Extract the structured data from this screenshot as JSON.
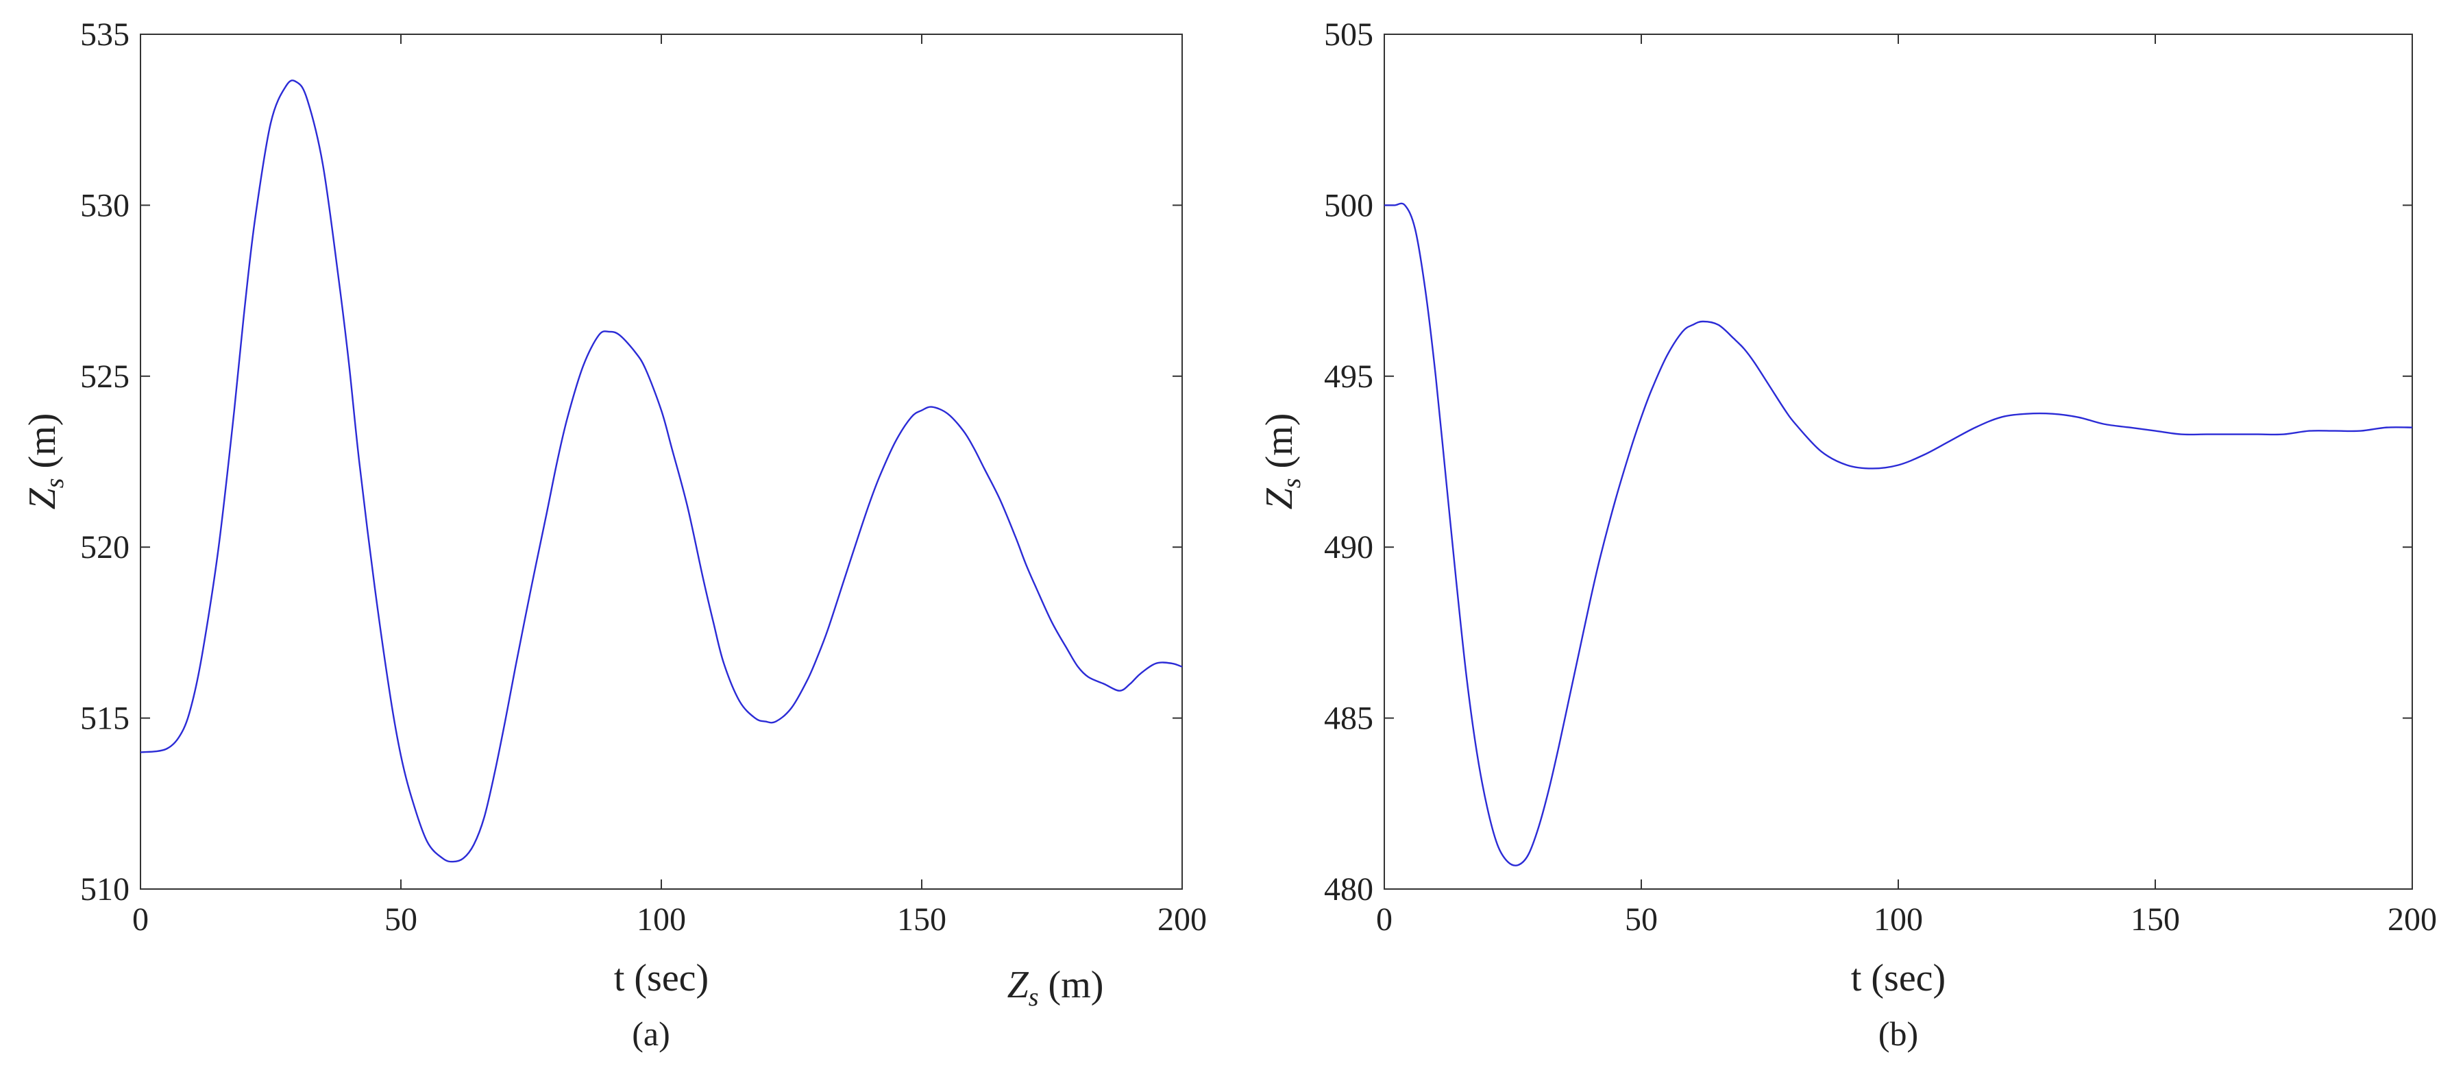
{
  "chart_data": [
    {
      "type": "line",
      "caption": "(a)",
      "xlabel": "t (sec)",
      "ylabel": "Z_s (m)",
      "stray_label": "Z_s (m)",
      "xlim": [
        0,
        200
      ],
      "ylim": [
        510,
        535
      ],
      "xticks": [
        0,
        50,
        100,
        150,
        200
      ],
      "yticks": [
        510,
        515,
        520,
        525,
        530,
        535
      ],
      "grid": false,
      "series": [
        {
          "color": "#2b2bd6",
          "x": [
            0,
            5,
            8,
            10,
            12,
            15,
            18,
            20,
            22,
            25,
            28,
            30,
            32,
            35,
            38,
            40,
            42,
            45,
            48,
            50,
            52,
            55,
            58,
            60,
            62,
            64,
            66,
            68,
            70,
            72,
            75,
            78,
            80,
            82,
            85,
            88,
            90,
            92,
            95,
            97,
            100,
            102,
            105,
            108,
            110,
            112,
            115,
            118,
            120,
            122,
            125,
            128,
            130,
            132,
            135,
            138,
            140,
            142,
            145,
            148,
            150,
            152,
            155,
            158,
            160,
            162,
            165,
            168,
            170,
            172,
            175,
            178,
            180,
            182,
            185,
            188,
            190,
            192,
            195,
            198,
            200
          ],
          "y": [
            514.0,
            514.1,
            514.6,
            515.5,
            517.0,
            520.0,
            524.0,
            527.0,
            529.6,
            532.4,
            533.5,
            533.6,
            533.1,
            531.2,
            527.9,
            525.4,
            522.5,
            518.8,
            515.6,
            513.9,
            512.7,
            511.4,
            510.9,
            510.8,
            510.9,
            511.3,
            512.1,
            513.4,
            514.9,
            516.5,
            518.8,
            521.0,
            522.5,
            523.8,
            525.3,
            526.2,
            526.3,
            526.2,
            525.7,
            525.2,
            524.0,
            522.9,
            521.2,
            519.1,
            517.8,
            516.6,
            515.5,
            515.0,
            514.9,
            514.9,
            515.3,
            516.1,
            516.8,
            517.6,
            519.0,
            520.4,
            521.3,
            522.1,
            523.1,
            523.8,
            524.0,
            524.1,
            523.9,
            523.4,
            522.9,
            522.3,
            521.4,
            520.3,
            519.5,
            518.8,
            517.8,
            517.0,
            516.5,
            516.2,
            516.0,
            515.8,
            516.0,
            516.3,
            516.6,
            516.6,
            516.5
          ]
        }
      ]
    },
    {
      "type": "line",
      "caption": "(b)",
      "xlabel": "t (sec)",
      "ylabel": "Z_s (m)",
      "xlim": [
        0,
        200
      ],
      "ylim": [
        480,
        505
      ],
      "xticks": [
        0,
        50,
        100,
        150,
        200
      ],
      "yticks": [
        480,
        485,
        490,
        495,
        500,
        505
      ],
      "grid": false,
      "series": [
        {
          "color": "#2b2bd6",
          "x": [
            0,
            2,
            4,
            6,
            8,
            10,
            12,
            14,
            16,
            18,
            20,
            22,
            24,
            26,
            28,
            30,
            32,
            34,
            36,
            38,
            40,
            42,
            45,
            48,
            50,
            52,
            55,
            58,
            60,
            62,
            65,
            68,
            70,
            72,
            75,
            78,
            80,
            85,
            90,
            95,
            100,
            105,
            110,
            115,
            120,
            125,
            130,
            135,
            140,
            145,
            150,
            155,
            160,
            165,
            170,
            175,
            180,
            185,
            190,
            195,
            200
          ],
          "y": [
            500.0,
            500.0,
            500.0,
            499.3,
            497.5,
            495.0,
            492.0,
            489.0,
            486.2,
            484.0,
            482.4,
            481.3,
            480.8,
            480.7,
            481.0,
            481.8,
            482.9,
            484.2,
            485.6,
            487.0,
            488.4,
            489.7,
            491.4,
            492.9,
            493.8,
            494.6,
            495.6,
            496.3,
            496.5,
            496.6,
            496.5,
            496.1,
            495.8,
            495.4,
            494.7,
            494.0,
            493.6,
            492.8,
            492.4,
            492.3,
            492.4,
            492.7,
            493.1,
            493.5,
            493.8,
            493.9,
            493.9,
            493.8,
            493.6,
            493.5,
            493.4,
            493.3,
            493.3,
            493.3,
            493.3,
            493.3,
            493.4,
            493.4,
            493.4,
            493.5,
            493.5
          ]
        }
      ]
    }
  ]
}
